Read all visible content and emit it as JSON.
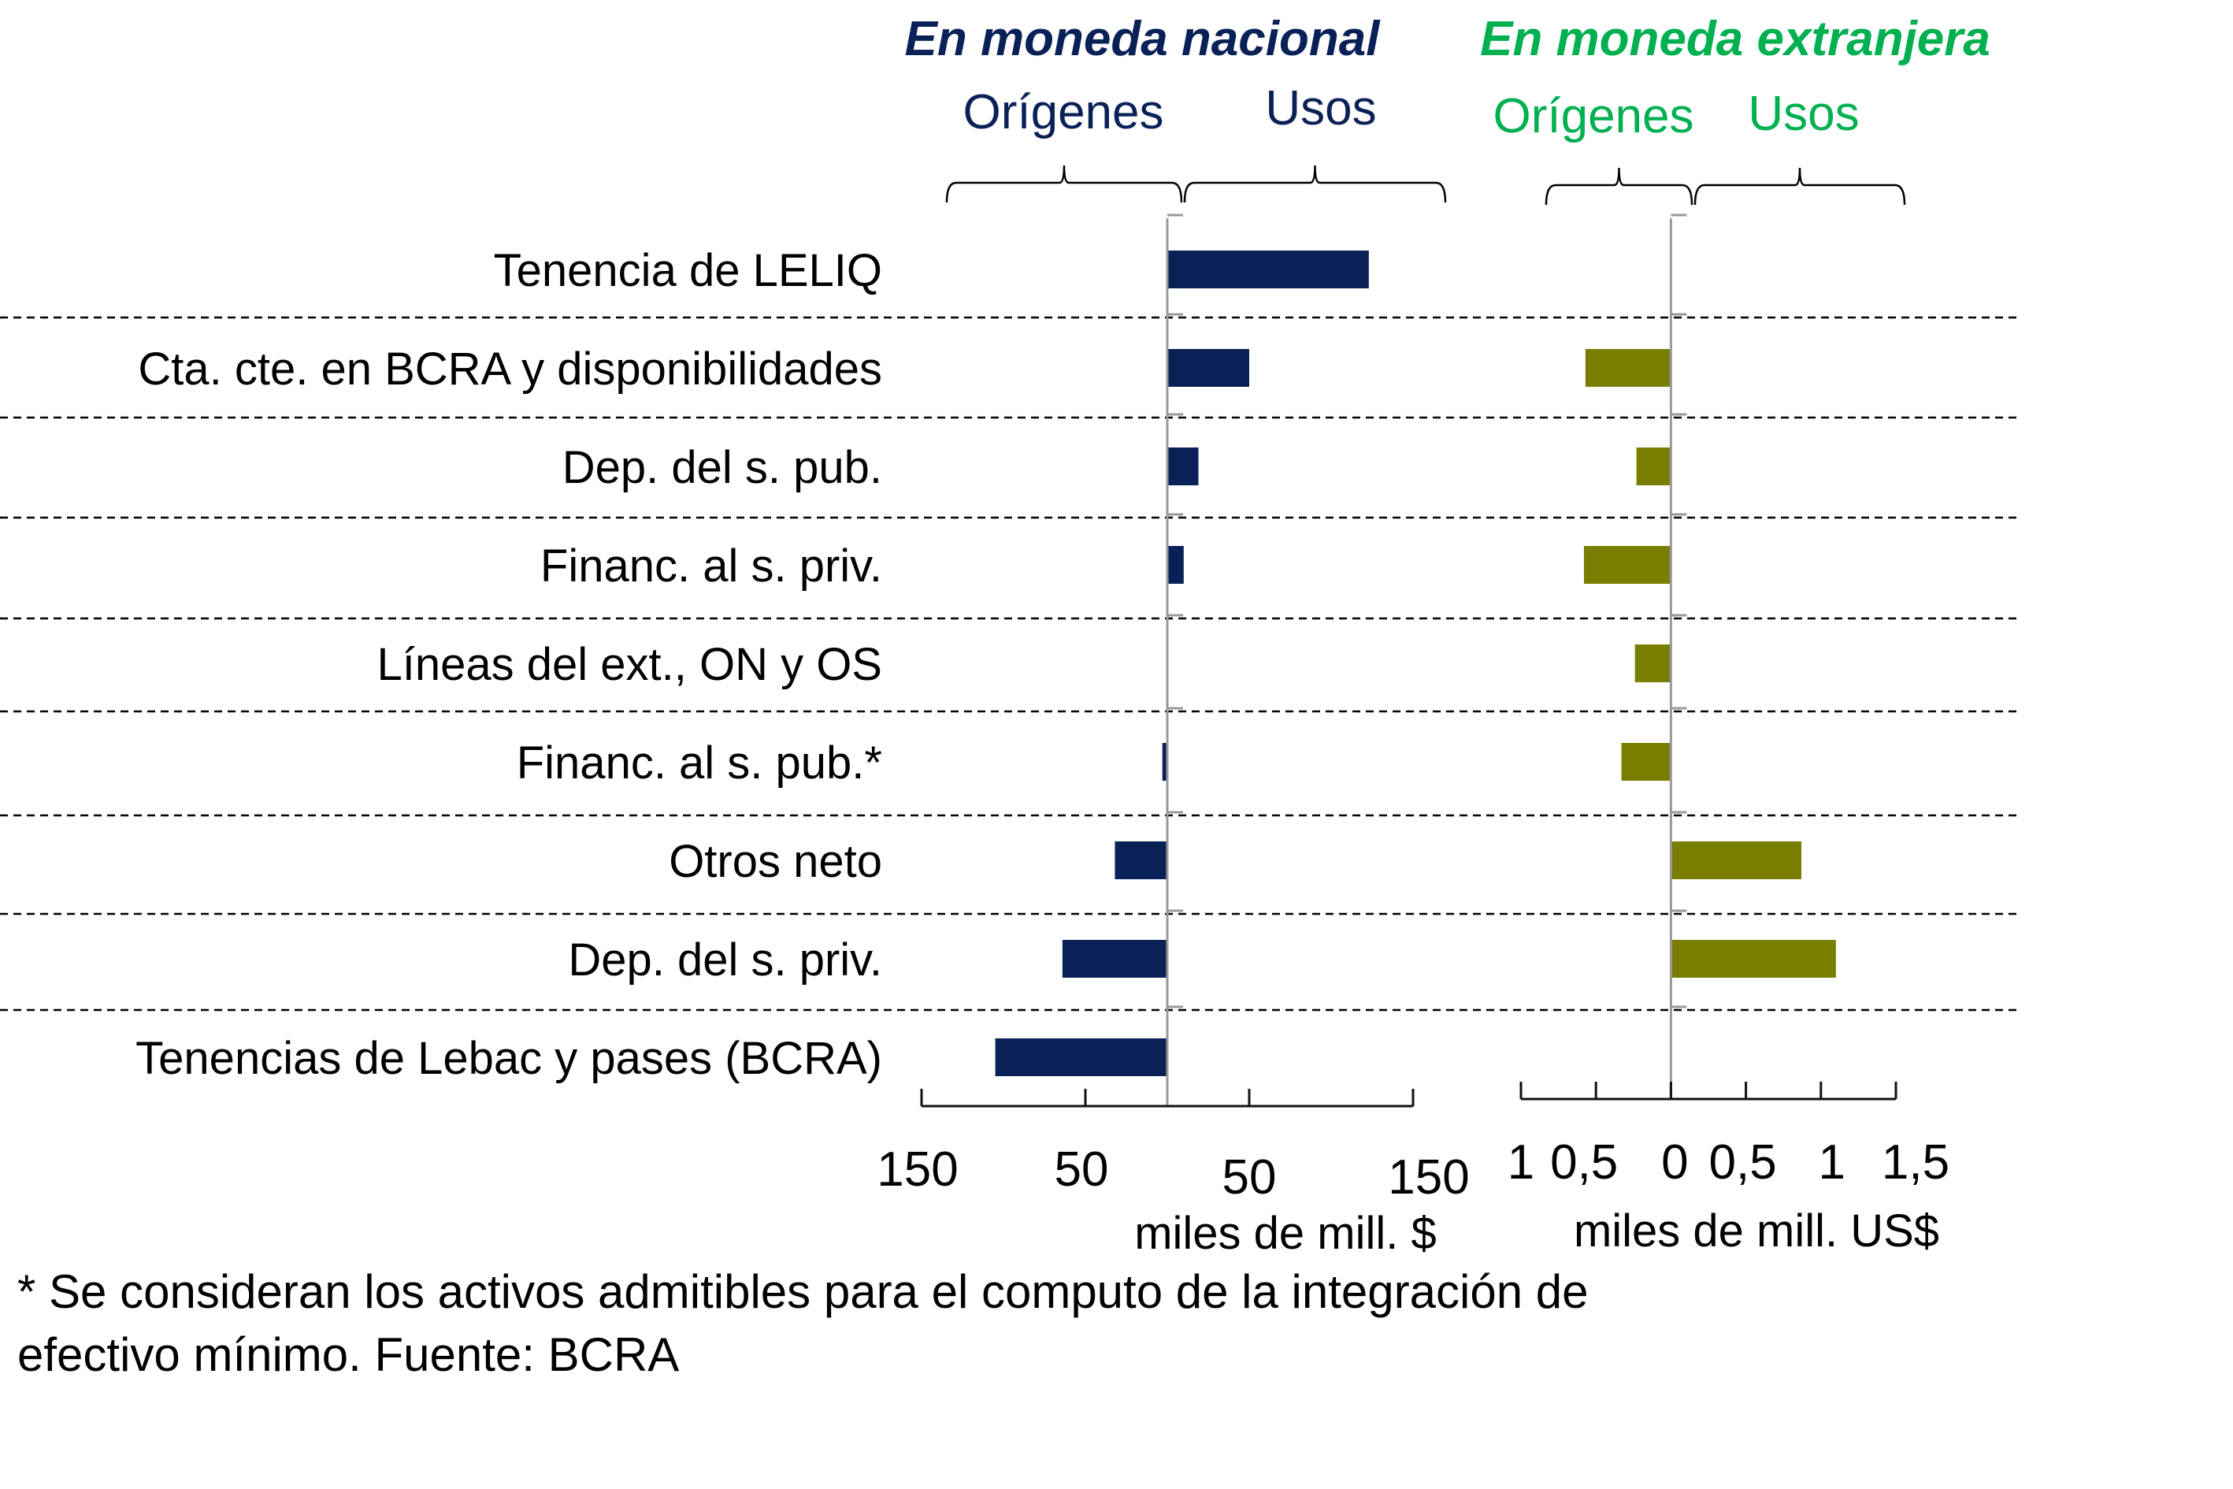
{
  "chart_data": [
    {
      "type": "bar",
      "orientation": "horizontal",
      "title": "En moneda nacional",
      "side_labels": {
        "left": "Orígenes",
        "right": "Usos"
      },
      "xlabel": "miles de mill. $",
      "xlim": [
        -150,
        150
      ],
      "x_ticks": [
        -150,
        -50,
        50,
        150
      ],
      "x_tick_labels": [
        "150",
        "50",
        "50",
        "150"
      ],
      "categories": [
        "Tenencia de LELIQ",
        "Cta. cte. en BCRA y disponibilidades",
        "Dep. del s. pub.",
        "Financ. al s. priv.",
        "Líneas del ext., ON y OS",
        "Financ. al s. pub.*",
        "Otros neto",
        "Dep. del s. priv.",
        "Tenencias de Lebac y pases (BCRA)"
      ],
      "values": [
        123,
        50,
        19,
        10,
        0,
        -3,
        -32,
        -64,
        -105
      ],
      "color": "#0a2158",
      "grid": "dashed row separators"
    },
    {
      "type": "bar",
      "orientation": "horizontal",
      "title": "En moneda extranjera",
      "side_labels": {
        "left": "Orígenes",
        "right": "Usos"
      },
      "xlabel": "miles de mill. US$",
      "xlim": [
        -1,
        1.5
      ],
      "x_ticks": [
        -1,
        -0.5,
        0,
        0.5,
        1,
        1.5
      ],
      "x_tick_labels": [
        "1",
        "0,5",
        "0",
        "0,5",
        "1",
        "1,5"
      ],
      "categories": [
        "Tenencia de LELIQ",
        "Cta. cte. en BCRA y disponibilidades",
        "Dep. del s. pub.",
        "Financ. al s. priv.",
        "Líneas del ext., ON y OS",
        "Financ. al s. pub.*",
        "Otros neto",
        "Dep. del s. priv.",
        "Tenencias de Lebac y pases (BCRA)"
      ],
      "values": [
        0,
        -0.57,
        -0.23,
        -0.58,
        -0.24,
        -0.33,
        0.87,
        1.1,
        0
      ],
      "color": "#7a7e00",
      "grid": "dashed row separators"
    }
  ],
  "colors": {
    "national_title": "#0a2158",
    "foreign_title": "#00b050",
    "national_bar": "#0a2158",
    "foreign_bar": "#7a7e00",
    "zero_line": "#999999"
  },
  "footnote": {
    "line1": "* Se consideran los activos admitibles para el computo de la integración de",
    "line2": "efectivo mínimo. Fuente: BCRA"
  }
}
